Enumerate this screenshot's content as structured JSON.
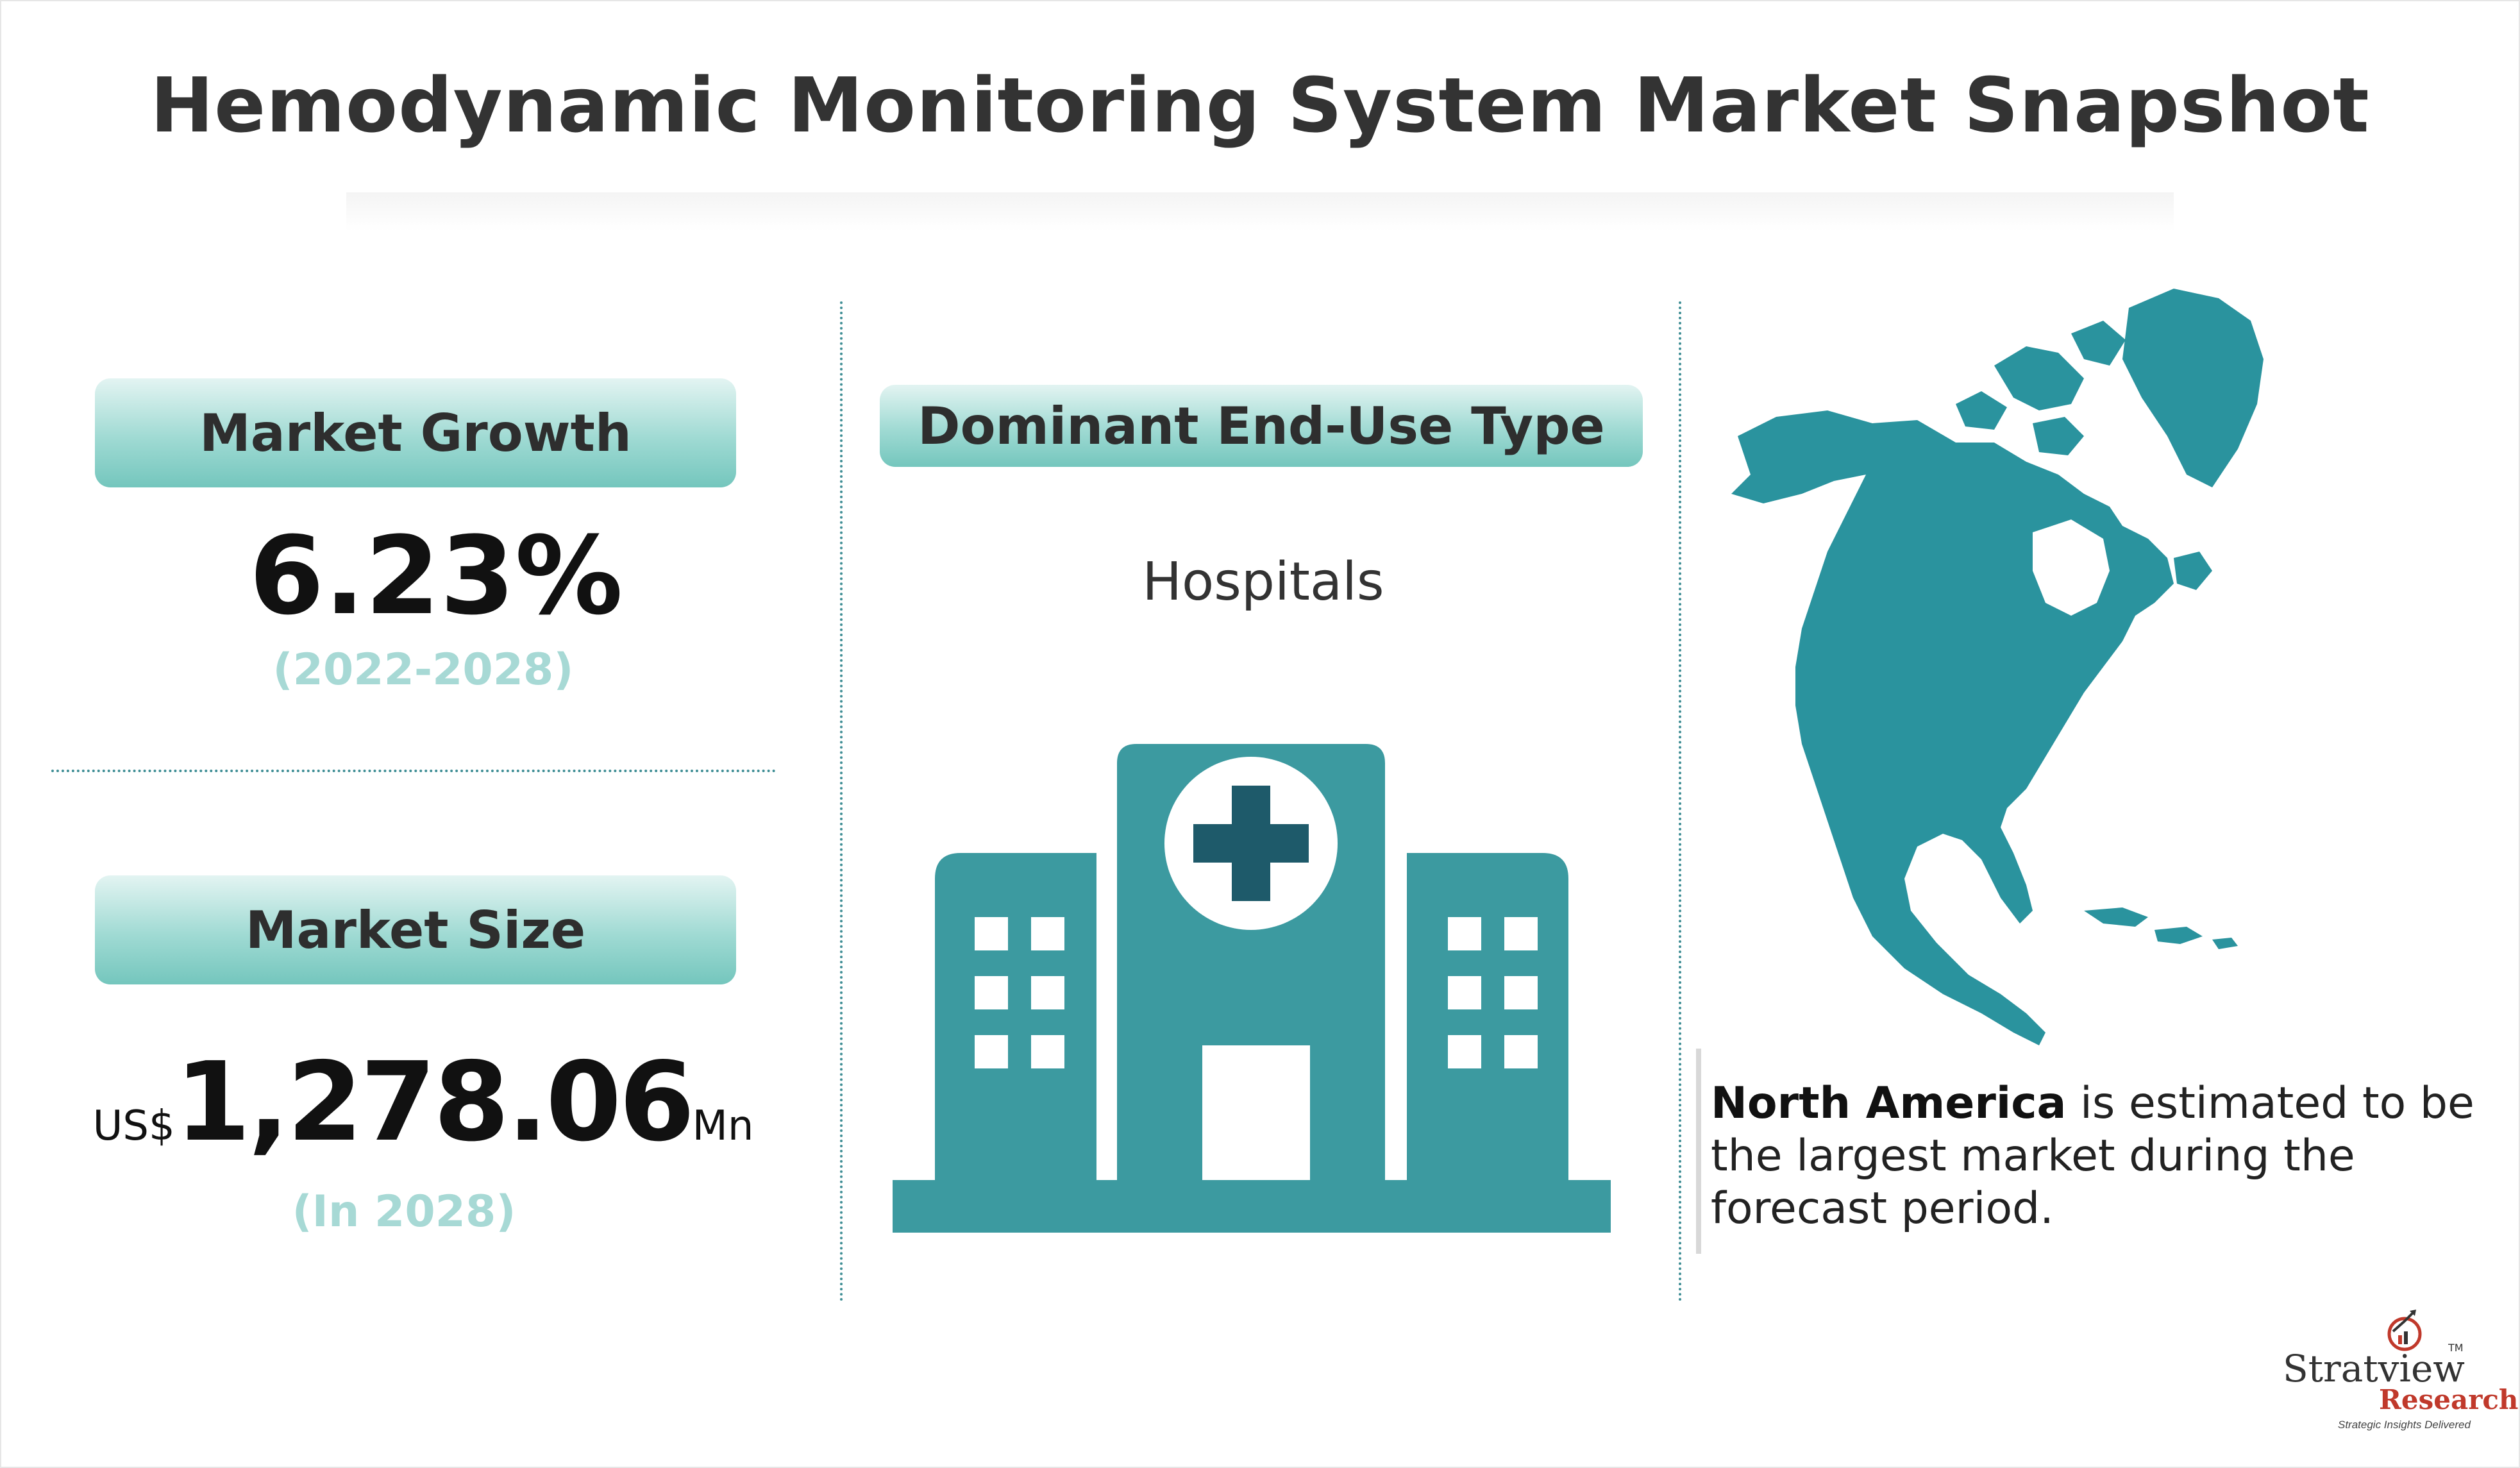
{
  "title": "Hemodynamic Monitoring System Market Snapshot",
  "market_growth": {
    "label": "Market Growth",
    "value": "6.23%",
    "period": "(2022-2028)"
  },
  "market_size": {
    "label": "Market Size",
    "currency": "US$",
    "value": "1,278.06",
    "unit": "Mn",
    "period": "(In 2028)"
  },
  "end_use": {
    "label": "Dominant End-Use Type",
    "value": "Hospitals"
  },
  "region": {
    "highlight": "North America",
    "text": " is estimated to be the largest market during the forecast period."
  },
  "logo": {
    "brand": "Stratview",
    "tm": "TM",
    "sub": "Research",
    "tagline": "Strategic Insights Delivered"
  },
  "colors": {
    "teal": "#3c9aa0",
    "map_teal": "#2a939e",
    "dark_teal": "#1e5a6a",
    "pill_gradient_light": "#e3f4f2",
    "pill_gradient_dark": "#74c6bd",
    "subtext": "#a7d9d5"
  },
  "icons": [
    "hospital-icon",
    "north-america-map",
    "stratview-logo-icon"
  ]
}
